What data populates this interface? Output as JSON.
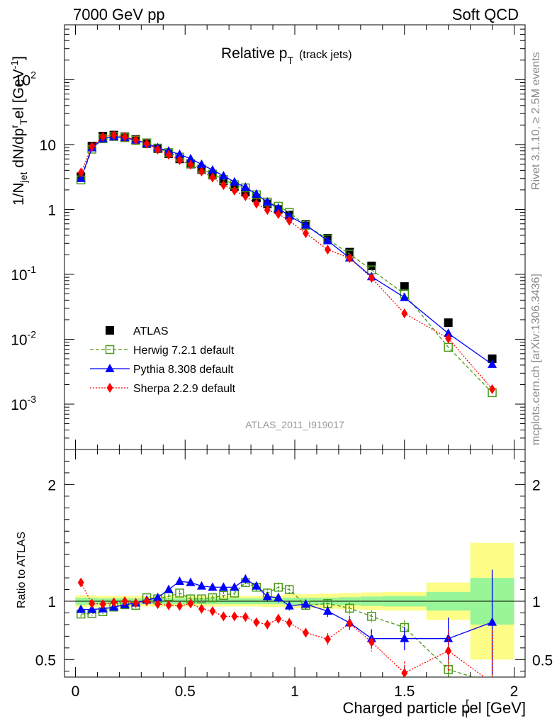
{
  "header": {
    "left": "7000 GeV pp",
    "right": "Soft QCD"
  },
  "side_labels": {
    "rivet": "Rivet 3.1.10, ≥ 2.5M events",
    "mcplots": "mcplots.cern.ch [arXiv:1306.3436]"
  },
  "chart_data": [
    {
      "type": "scatter",
      "panel": "main",
      "title": "Relative p",
      "title_sub": "T",
      "title_suffix": "(track jets)",
      "watermark": "ATLAS_2011_I919017",
      "ylabel_parts": [
        "1/N",
        "jet",
        " dN/dp",
        "r",
        "T",
        "el [GeV",
        "-1",
        "]"
      ],
      "yscale": "log",
      "ylim": [
        0.0002,
        700
      ],
      "xlim": [
        -0.05,
        2.05
      ],
      "ytick_labels": [
        {
          "base": "10",
          "exp": "-3",
          "value": 0.001
        },
        {
          "base": "10",
          "exp": "-2",
          "value": 0.01
        },
        {
          "base": "10",
          "exp": "-1",
          "value": 0.1
        },
        {
          "base": "1",
          "exp": "",
          "value": 1
        },
        {
          "base": "10",
          "exp": "",
          "value": 10
        },
        {
          "base": "10",
          "exp": "2",
          "value": 100
        }
      ],
      "legend": {
        "position": "lower-left",
        "entries": [
          "ATLAS",
          "Herwig 7.2.1 default",
          "Pythia 8.308 default",
          "Sherpa 2.2.9 default"
        ]
      },
      "x": [
        0.025,
        0.075,
        0.125,
        0.175,
        0.225,
        0.275,
        0.325,
        0.375,
        0.425,
        0.475,
        0.525,
        0.575,
        0.625,
        0.675,
        0.725,
        0.775,
        0.825,
        0.875,
        0.925,
        0.975,
        1.05,
        1.15,
        1.25,
        1.35,
        1.5,
        1.7,
        1.9
      ],
      "series": [
        {
          "name": "ATLAS",
          "color": "#000000",
          "marker": "square-filled",
          "line": "none",
          "values": [
            3.2,
            9.5,
            13.5,
            14.0,
            13.2,
            12.0,
            10.3,
            8.6,
            7.2,
            6.0,
            5.0,
            4.1,
            3.4,
            2.75,
            2.25,
            1.85,
            1.5,
            1.22,
            1.0,
            0.82,
            0.59,
            0.36,
            0.22,
            0.135,
            0.065,
            0.018,
            0.005
          ]
        },
        {
          "name": "Herwig 7.2.1 default",
          "color": "#4a9a1a",
          "marker": "square-open",
          "line": "dashed",
          "values": [
            2.85,
            8.5,
            12.3,
            13.3,
            12.8,
            11.6,
            10.6,
            8.8,
            7.5,
            6.4,
            5.1,
            4.2,
            3.5,
            2.9,
            2.4,
            2.15,
            1.68,
            1.3,
            1.12,
            0.9,
            0.57,
            0.35,
            0.205,
            0.117,
            0.05,
            0.0075,
            0.0015
          ]
        },
        {
          "name": "Pythia 8.308 default",
          "color": "#0000ff",
          "marker": "triangle-filled",
          "line": "solid",
          "values": [
            3.0,
            8.9,
            12.3,
            13.2,
            12.8,
            11.7,
            10.4,
            8.9,
            7.95,
            7.05,
            6.05,
            4.95,
            4.05,
            3.3,
            2.65,
            2.2,
            1.72,
            1.3,
            1.05,
            0.79,
            0.575,
            0.33,
            0.179,
            0.092,
            0.044,
            0.0123,
            0.0041
          ]
        },
        {
          "name": "Sherpa 2.2.9 default",
          "color": "#ff0000",
          "marker": "diamond-filled",
          "line": "dotted",
          "values": [
            3.7,
            9.3,
            13.2,
            13.9,
            13.2,
            11.8,
            10.3,
            8.4,
            6.95,
            5.75,
            4.9,
            3.85,
            3.1,
            2.37,
            1.95,
            1.6,
            1.23,
            0.98,
            0.85,
            0.67,
            0.43,
            0.24,
            0.178,
            0.088,
            0.025,
            0.0103,
            0.0017
          ]
        }
      ]
    },
    {
      "type": "scatter",
      "panel": "ratio",
      "ylabel": "Ratio to ATLAS",
      "xlabel_parts": [
        "Charged particle p",
        "r",
        "T",
        "el [GeV]"
      ],
      "ylim": [
        0.35,
        2.3
      ],
      "xlim": [
        -0.05,
        2.05
      ],
      "xtick_labels": [
        "0",
        "0.5",
        "1",
        "1.5",
        "2"
      ],
      "xtick_values": [
        0,
        0.5,
        1,
        1.5,
        2
      ],
      "ytick_labels": [
        "0.5",
        "1",
        "2"
      ],
      "ytick_values": [
        0.5,
        1,
        2
      ],
      "bands": {
        "x_edges": [
          0,
          0.05,
          0.1,
          0.15,
          0.2,
          0.25,
          0.3,
          0.35,
          0.4,
          0.45,
          0.5,
          0.55,
          0.6,
          0.65,
          0.7,
          0.75,
          0.8,
          0.85,
          0.9,
          0.95,
          1.0,
          1.1,
          1.2,
          1.3,
          1.4,
          1.6,
          1.8,
          2.0
        ],
        "green_halfwidth": [
          0.03,
          0.03,
          0.025,
          0.025,
          0.025,
          0.025,
          0.025,
          0.025,
          0.025,
          0.025,
          0.025,
          0.025,
          0.025,
          0.025,
          0.025,
          0.025,
          0.025,
          0.025,
          0.025,
          0.03,
          0.03,
          0.03,
          0.035,
          0.04,
          0.045,
          0.08,
          0.2
        ],
        "yellow_halfwidth": [
          0.05,
          0.05,
          0.045,
          0.045,
          0.045,
          0.045,
          0.045,
          0.045,
          0.045,
          0.045,
          0.045,
          0.045,
          0.045,
          0.045,
          0.045,
          0.045,
          0.045,
          0.05,
          0.05,
          0.06,
          0.06,
          0.065,
          0.07,
          0.075,
          0.08,
          0.16,
          0.5
        ],
        "green_color": "#98f598",
        "yellow_color": "#fdfd88"
      },
      "series": [
        {
          "name": "Herwig 7.2.1 default",
          "color": "#4a9a1a",
          "marker": "square-open",
          "line": "dashed",
          "values": [
            0.89,
            0.895,
            0.91,
            0.95,
            0.97,
            0.965,
            1.03,
            1.02,
            1.04,
            1.07,
            1.02,
            1.02,
            1.03,
            1.05,
            1.07,
            1.16,
            1.12,
            1.07,
            1.12,
            1.1,
            0.965,
            0.98,
            0.94,
            0.87,
            0.775,
            0.415,
            0.3
          ],
          "errors": [
            0.025,
            0.02,
            0.02,
            0.02,
            0.02,
            0.02,
            0.02,
            0.02,
            0.02,
            0.025,
            0.025,
            0.025,
            0.025,
            0.03,
            0.03,
            0.035,
            0.035,
            0.04,
            0.04,
            0.04,
            0.04,
            0.04,
            0.05,
            0.05,
            0.06,
            0.08,
            0.4
          ]
        },
        {
          "name": "Pythia 8.308 default",
          "color": "#0000ff",
          "marker": "triangle-filled",
          "line": "solid",
          "values": [
            0.93,
            0.93,
            0.935,
            0.95,
            0.97,
            0.985,
            1.01,
            1.03,
            1.1,
            1.17,
            1.16,
            1.13,
            1.12,
            1.12,
            1.12,
            1.19,
            1.13,
            1.04,
            1.03,
            0.96,
            0.975,
            0.915,
            0.815,
            0.68,
            0.68,
            0.68,
            0.82
          ],
          "errors": [
            0.02,
            0.02,
            0.02,
            0.02,
            0.02,
            0.02,
            0.02,
            0.02,
            0.02,
            0.025,
            0.025,
            0.025,
            0.025,
            0.03,
            0.03,
            0.035,
            0.035,
            0.04,
            0.04,
            0.04,
            0.04,
            0.05,
            0.06,
            0.08,
            0.1,
            0.18,
            0.45
          ]
        },
        {
          "name": "Sherpa 2.2.9 default",
          "color": "#ff0000",
          "marker": "diamond-filled",
          "line": "dotted",
          "values": [
            1.16,
            0.98,
            0.975,
            0.99,
            1.0,
            0.985,
            1.0,
            0.975,
            0.965,
            0.96,
            0.98,
            0.935,
            0.915,
            0.87,
            0.87,
            0.865,
            0.82,
            0.8,
            0.85,
            0.815,
            0.73,
            0.675,
            0.81,
            0.65,
            0.385,
            0.575,
            0.3
          ],
          "errors": [
            0.02,
            0.02,
            0.02,
            0.02,
            0.02,
            0.02,
            0.02,
            0.02,
            0.02,
            0.025,
            0.025,
            0.025,
            0.025,
            0.03,
            0.03,
            0.035,
            0.035,
            0.04,
            0.04,
            0.04,
            0.04,
            0.05,
            0.06,
            0.08,
            0.1,
            0.18,
            0.45
          ]
        }
      ]
    }
  ]
}
